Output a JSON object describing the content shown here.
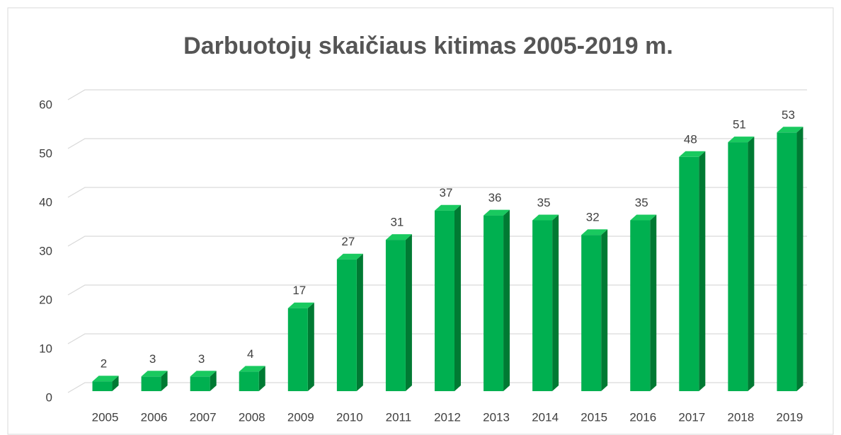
{
  "chart_data": {
    "type": "bar",
    "title": "Darbuotojų skaičiaus kitimas 2005-2019 m.",
    "categories": [
      "2005",
      "2006",
      "2007",
      "2008",
      "2009",
      "2010",
      "2011",
      "2012",
      "2013",
      "2014",
      "2015",
      "2016",
      "2017",
      "2018",
      "2019"
    ],
    "values": [
      2,
      3,
      3,
      4,
      17,
      27,
      31,
      37,
      36,
      35,
      32,
      35,
      48,
      51,
      53
    ],
    "color": "#00b050",
    "ylim": [
      0,
      60
    ],
    "yticks": [
      0,
      10,
      20,
      30,
      40,
      50,
      60
    ],
    "grid": true
  }
}
